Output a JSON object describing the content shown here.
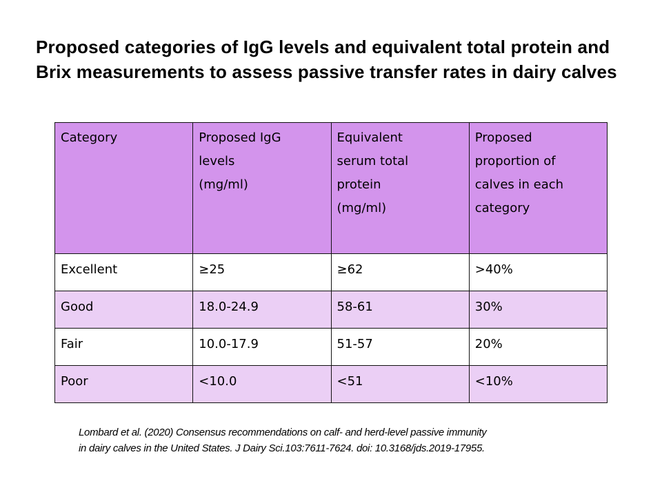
{
  "slide": {
    "title": "Proposed categories of IgG levels and equivalent total protein and Brix measurements to assess passive transfer rates in dairy calves",
    "citation_line1": "Lombard et al. (2020) Consensus recommendations on calf- and herd-level passive immunity",
    "citation_line2": "in dairy calves in the United States. J Dairy Sci.103:7611-7624. doi: 10.3168/jds.2019-17955."
  },
  "table": {
    "headers": [
      [
        "Category"
      ],
      [
        "Proposed IgG",
        "levels",
        "(mg/ml)"
      ],
      [
        "Equivalent",
        "serum total",
        "protein",
        "(mg/ml)"
      ],
      [
        "Proposed",
        "proportion of",
        "calves in each",
        "category"
      ]
    ],
    "rows": [
      [
        "Excellent",
        "≥25",
        "≥62",
        ">40%"
      ],
      [
        "Good",
        "18.0-24.9",
        "58-61",
        "30%"
      ],
      [
        "Fair",
        "10.0-17.9",
        "51-57",
        "20%"
      ],
      [
        "Poor",
        "<10.0",
        "<51",
        "<10%"
      ]
    ]
  },
  "colors": {
    "header_bg": "#d394ec",
    "row_tint_bg": "#ebcff5",
    "row_white_bg": "#ffffff",
    "border": "#111111"
  }
}
